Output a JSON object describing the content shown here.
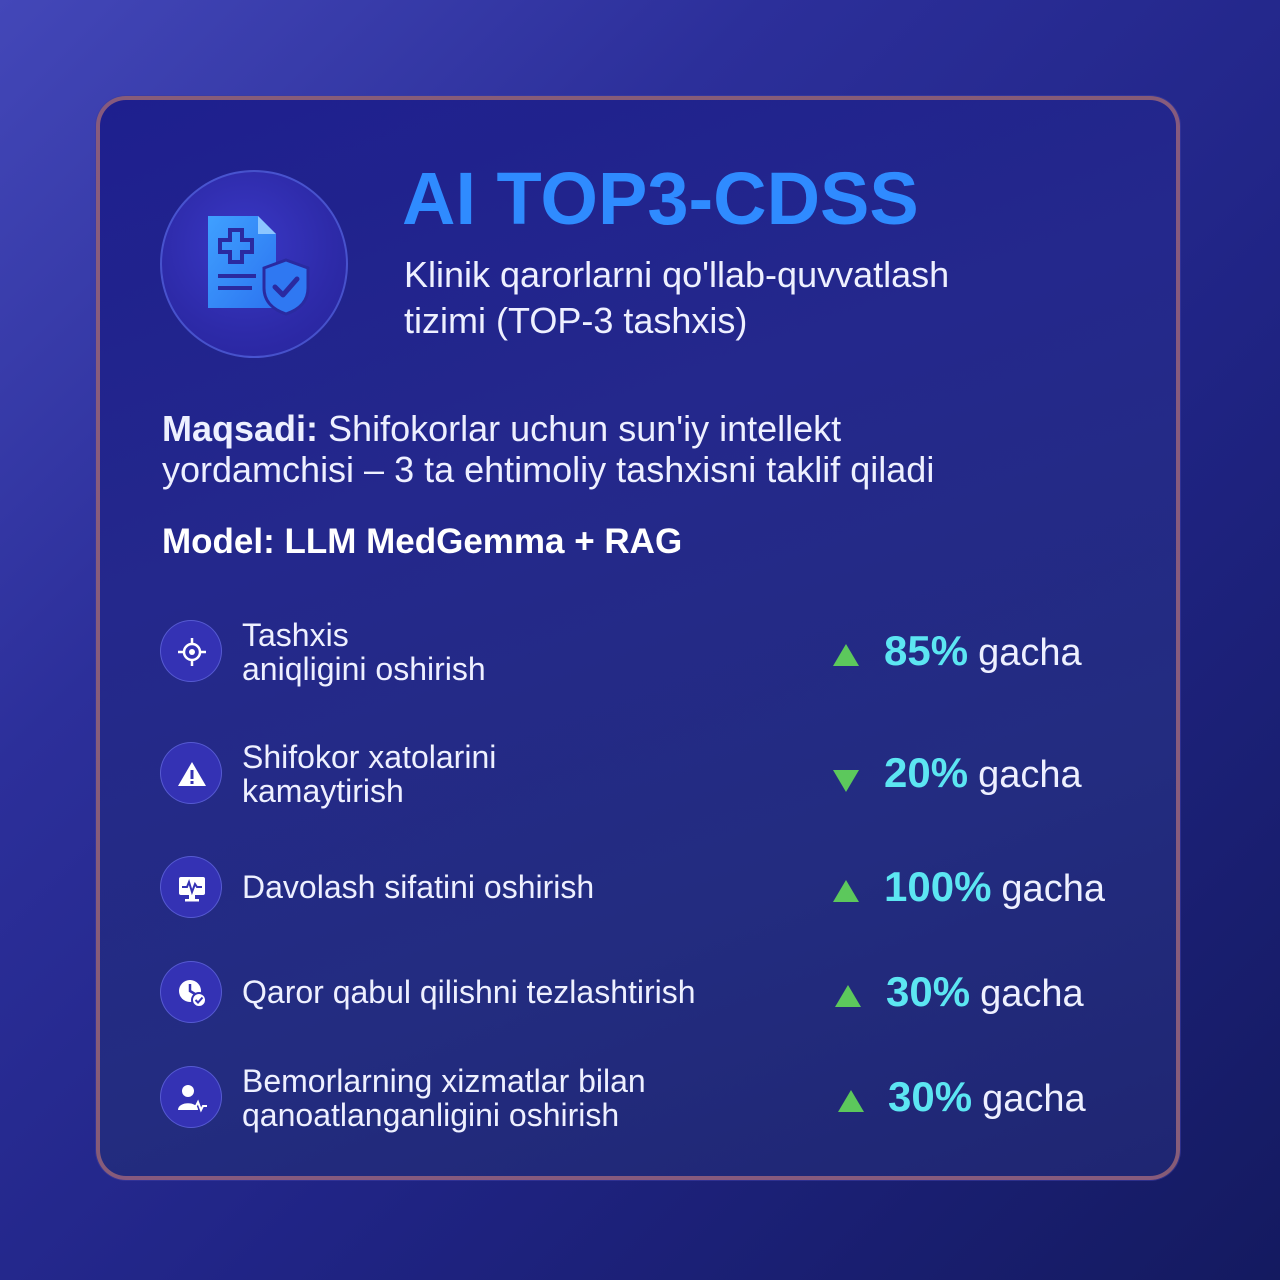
{
  "header": {
    "title": "AI TOP3-CDSS",
    "subtitle_line1": "Klinik qarorlarni qo'llab-quvvatlash",
    "subtitle_line2": "tizimi (TOP-3 tashxis)",
    "logo_icon": "medical-document-shield-icon"
  },
  "goal": {
    "label": "Maqsadi:",
    "text_line1": "Shifokorlar uchun sun'iy intellekt",
    "text_line2": "yordamchisi – 3 ta ehtimoliy tashxisni taklif qiladi"
  },
  "model": {
    "text": "Model: LLM MedGemma + RAG"
  },
  "metrics": [
    {
      "icon": "target-icon",
      "label_line1": "Tashxis",
      "label_line2": "aniqligini oshirish",
      "direction": "up",
      "percent": "85%",
      "suffix": "gacha"
    },
    {
      "icon": "warning-icon",
      "label_line1": "Shifokor xatolarini",
      "label_line2": "kamaytirish",
      "direction": "down",
      "percent": "20%",
      "suffix": "gacha"
    },
    {
      "icon": "heart-monitor-icon",
      "label_line1": "Davolash sifatini oshirish",
      "label_line2": "",
      "direction": "up",
      "percent": "100%",
      "suffix": "gacha"
    },
    {
      "icon": "clock-check-icon",
      "label_line1": "Qaror qabul qilishni tezlashtirish",
      "label_line2": "",
      "direction": "up",
      "percent": "30%",
      "suffix": "gacha"
    },
    {
      "icon": "patient-pulse-icon",
      "label_line1": "Bemorlarning xizmatlar bilan",
      "label_line2": "qanoatlanganligini oshirish",
      "direction": "up",
      "percent": "30%",
      "suffix": "gacha"
    }
  ],
  "colors": {
    "title": "#2f8bff",
    "percent": "#5ce6f2",
    "arrow": "#5cc85c",
    "border": "#aa6e78"
  }
}
